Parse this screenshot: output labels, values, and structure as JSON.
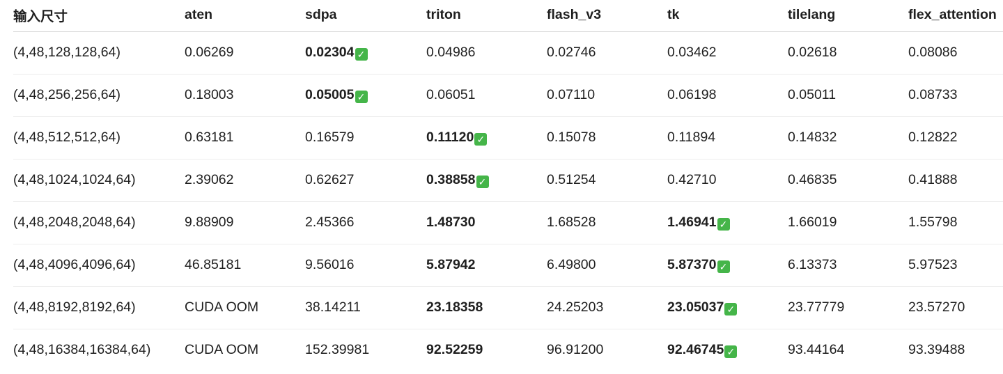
{
  "table": {
    "headers": [
      "输入尺寸",
      "aten",
      "sdpa",
      "triton",
      "flash_v3",
      "tk",
      "tilelang",
      "flex_attention"
    ],
    "best_marker": "✅",
    "rows": [
      {
        "cells": [
          "(4,48,128,128,64)",
          "0.06269",
          "0.02304",
          "0.04986",
          "0.02746",
          "0.03462",
          "0.02618",
          "0.08086"
        ],
        "bold": [
          2
        ],
        "check": 2
      },
      {
        "cells": [
          "(4,48,256,256,64)",
          "0.18003",
          "0.05005",
          "0.06051",
          "0.07110",
          "0.06198",
          "0.05011",
          "0.08733"
        ],
        "bold": [
          2
        ],
        "check": 2
      },
      {
        "cells": [
          "(4,48,512,512,64)",
          "0.63181",
          "0.16579",
          "0.11120",
          "0.15078",
          "0.11894",
          "0.14832",
          "0.12822"
        ],
        "bold": [
          3
        ],
        "check": 3
      },
      {
        "cells": [
          "(4,48,1024,1024,64)",
          "2.39062",
          "0.62627",
          "0.38858",
          "0.51254",
          "0.42710",
          "0.46835",
          "0.41888"
        ],
        "bold": [
          3
        ],
        "check": 3
      },
      {
        "cells": [
          "(4,48,2048,2048,64)",
          "9.88909",
          "2.45366",
          "1.48730",
          "1.68528",
          "1.46941",
          "1.66019",
          "1.55798"
        ],
        "bold": [
          3,
          5
        ],
        "check": 5
      },
      {
        "cells": [
          "(4,48,4096,4096,64)",
          "46.85181",
          "9.56016",
          "5.87942",
          "6.49800",
          "5.87370",
          "6.13373",
          "5.97523"
        ],
        "bold": [
          3,
          5
        ],
        "check": 5
      },
      {
        "cells": [
          "(4,48,8192,8192,64)",
          "CUDA OOM",
          "38.14211",
          "23.18358",
          "24.25203",
          "23.05037",
          "23.77779",
          "23.57270"
        ],
        "bold": [
          3,
          5
        ],
        "check": 5
      },
      {
        "cells": [
          "(4,48,16384,16384,64)",
          "CUDA OOM",
          "152.39981",
          "92.52259",
          "96.91200",
          "92.46745",
          "93.44164",
          "93.39488"
        ],
        "bold": [
          3,
          5
        ],
        "check": 5
      }
    ]
  }
}
